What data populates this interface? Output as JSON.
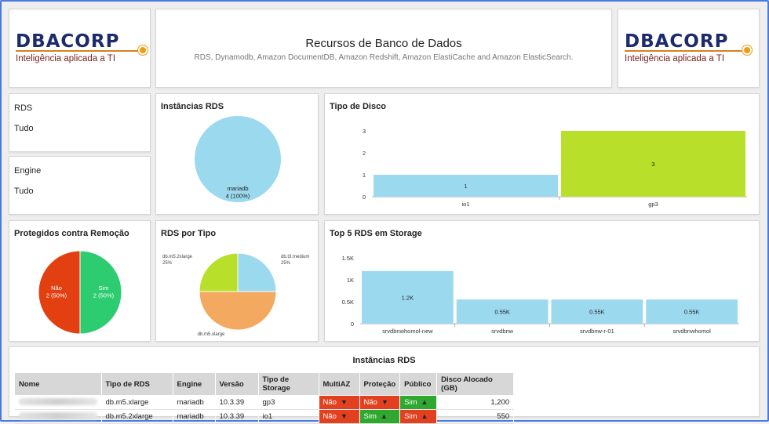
{
  "header": {
    "title": "Recursos de Banco de Dados",
    "subtitle": "RDS, Dynamodb, Amazon DocumentDB, Amazon Redshift, Amazon ElastiCache and Amazon ElasticSearch.",
    "logo_word": "DBACORP",
    "logo_tagline": "Inteligência aplicada a TI"
  },
  "filters": {
    "rds_label": "RDS",
    "rds_value": "Tudo",
    "engine_label": "Engine",
    "engine_value": "Tudo"
  },
  "colors": {
    "blue": "#9bd9ee",
    "green": "#b8e02a",
    "orange": "#f4a960",
    "red": "#e24010",
    "lime": "#2ecc71",
    "bad": "#e2401f",
    "good": "#2ea82e"
  },
  "chart_data": [
    {
      "type": "pie",
      "title": "Instâncias RDS",
      "categories": [
        "mariadb"
      ],
      "values": [
        4
      ],
      "labels": [
        "mariadb\n4 (100%)"
      ]
    },
    {
      "type": "bar",
      "title": "Tipo de Disco",
      "categories": [
        "io1",
        "gp3"
      ],
      "values": [
        1,
        3
      ],
      "ylim": [
        0,
        3
      ],
      "yticks": [
        "0",
        "1",
        "2",
        "3"
      ]
    },
    {
      "type": "pie",
      "title": "Protegidos contra Remoção",
      "categories": [
        "Não",
        "Sim"
      ],
      "values": [
        2,
        2
      ],
      "labels": [
        "Não\n2 (50%)",
        "Sim\n2 (50%)"
      ]
    },
    {
      "type": "pie",
      "title": "RDS por Tipo",
      "categories": [
        "db.t3.medium",
        "db.m5.xlarge",
        "db.m5.2xlarge"
      ],
      "values": [
        1,
        2,
        1
      ],
      "labels": [
        "db.t3.medium\n25%",
        "db.m5.xlarge",
        "db.m5.2xlarge\n25%"
      ]
    },
    {
      "type": "bar",
      "title": "Top 5 RDS em Storage",
      "categories": [
        "srvdbnwhomol-new",
        "srvdbnw",
        "srvdbnw-r-01",
        "srvdbnwhomol"
      ],
      "values": [
        1200,
        550,
        550,
        550
      ],
      "value_labels": [
        "1.2K",
        "0.55K",
        "0.55K",
        "0.55K"
      ],
      "ylim": [
        0,
        1500
      ],
      "yticks": [
        "0",
        "0.5K",
        "1K",
        "1.5K"
      ]
    }
  ],
  "table": {
    "title": "Instâncias RDS",
    "columns": [
      "Nome",
      "Tipo de RDS",
      "Engine",
      "Versão",
      "Tipo de Storage",
      "MultiAZ",
      "Proteção",
      "Público",
      "Disco Alocado (GB)"
    ],
    "rows": [
      {
        "tipo": "db.m5.xlarge",
        "engine": "mariadb",
        "versao": "10.3.39",
        "storage": "gp3",
        "multiaz": "Não",
        "protecao": "Não",
        "publico": "Sim",
        "disco": "1,200"
      },
      {
        "tipo": "db.m5.2xlarge",
        "engine": "mariadb",
        "versao": "10.3.39",
        "storage": "io1",
        "multiaz": "Não",
        "protecao": "Sim",
        "publico": "Sim",
        "disco": "550"
      }
    ]
  }
}
